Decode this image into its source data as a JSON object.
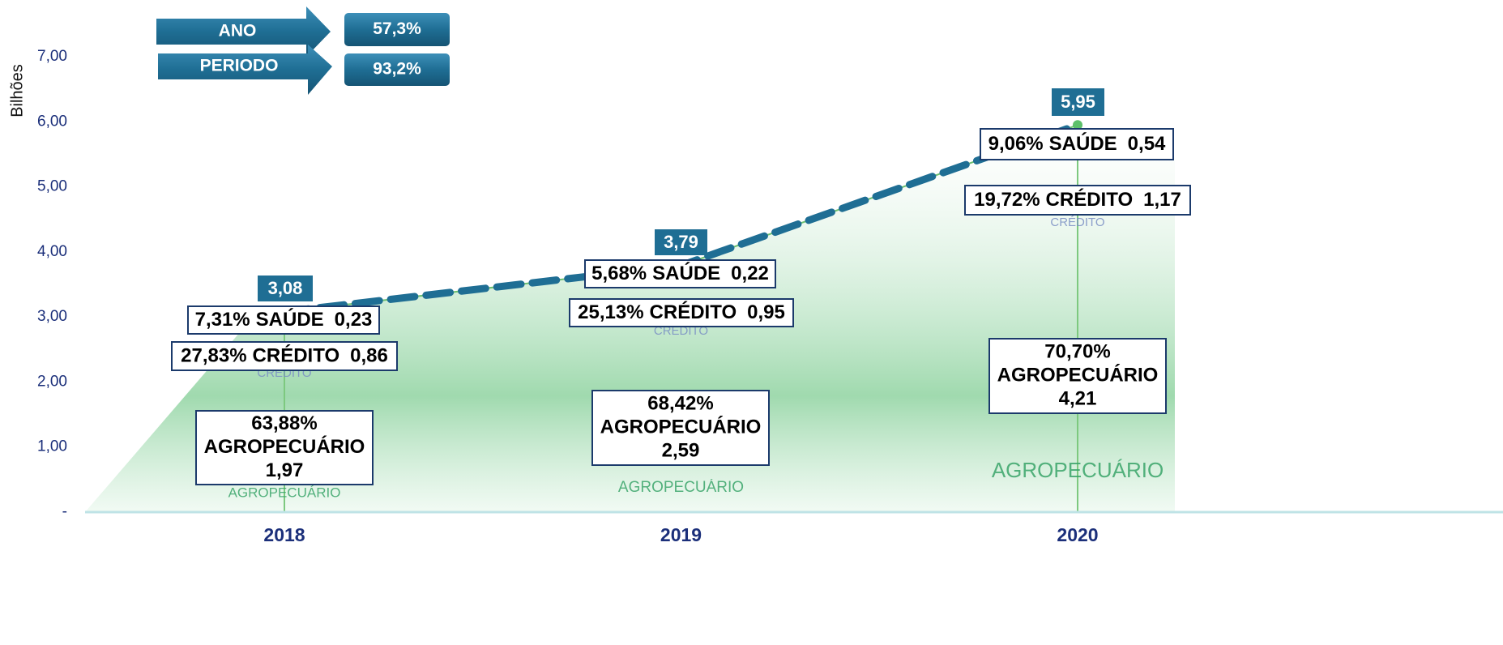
{
  "chart_data": {
    "type": "line",
    "y_axis_label": "Bilhões",
    "categories": [
      "2018",
      "2019",
      "2020"
    ],
    "values": [
      3.08,
      3.79,
      5.95
    ],
    "value_labels": [
      "3,08",
      "3,79",
      "5,95"
    ],
    "color": "#1f6e94",
    "area_color": "#8fd3a0",
    "ylim": [
      0,
      7
    ],
    "yticks": [
      {
        "value": 0,
        "label": "-"
      },
      {
        "value": 1,
        "label": "1,00"
      },
      {
        "value": 2,
        "label": "2,00"
      },
      {
        "value": 3,
        "label": "3,00"
      },
      {
        "value": 4,
        "label": "4,00"
      },
      {
        "value": 5,
        "label": "5,00"
      },
      {
        "value": 6,
        "label": "6,00"
      },
      {
        "value": 7,
        "label": "7,00"
      }
    ],
    "breakdown": [
      {
        "name": "AGROPECUÁRIO",
        "values": [
          1.97,
          2.59,
          4.21
        ],
        "value_labels": [
          "1,97",
          "2,59",
          "4,21"
        ],
        "shares": [
          63.88,
          68.42,
          70.7
        ],
        "share_labels": [
          "63,88%",
          "68,42%",
          "70,70%"
        ]
      },
      {
        "name": "CRÉDITO",
        "values": [
          0.86,
          0.95,
          1.17
        ],
        "value_labels": [
          "0,86",
          "0,95",
          "1,17"
        ],
        "shares": [
          27.83,
          25.13,
          19.72
        ],
        "share_labels": [
          "27,83%",
          "25,13%",
          "19,72%"
        ]
      },
      {
        "name": "SAÚDE",
        "values": [
          0.23,
          0.22,
          0.54
        ],
        "value_labels": [
          "0,23",
          "0,22",
          "0,54"
        ],
        "shares": [
          7.31,
          5.68,
          9.06
        ],
        "share_labels": [
          "7,31%",
          "5,68%",
          "9,06%"
        ]
      }
    ],
    "badges": [
      {
        "label": "ANO",
        "value": 57.3,
        "value_label": "57,3%"
      },
      {
        "label": "PERIODO",
        "value": 93.2,
        "value_label": "93,2%"
      }
    ]
  }
}
